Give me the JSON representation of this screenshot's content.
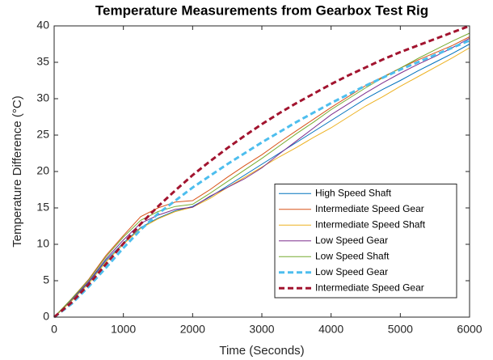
{
  "chart_data": {
    "type": "line",
    "title": "Temperature Measurements from Gearbox Test Rig",
    "x_label": "Time (Seconds)",
    "y_label": "Temperature Difference (°C)",
    "x": [
      0,
      250,
      500,
      750,
      1000,
      1250,
      1500,
      1750,
      2000,
      2250,
      2500,
      2750,
      3000,
      3250,
      3500,
      3750,
      4000,
      4250,
      4500,
      4750,
      5000,
      5250,
      5500,
      5750,
      6000
    ],
    "series": [
      {
        "name": "High Speed Shaft",
        "color": "#0072BD",
        "dashed": false,
        "values": [
          0,
          2.3,
          4.8,
          7.8,
          10.2,
          12.3,
          13.6,
          14.6,
          15.2,
          16.5,
          18,
          19.5,
          21,
          22.5,
          24,
          25.5,
          27,
          28.5,
          30,
          31.3,
          32.5,
          33.8,
          35,
          36.2,
          37.5
        ]
      },
      {
        "name": "Intermediate Speed Gear",
        "color": "#D95319",
        "dashed": false,
        "values": [
          0,
          2.5,
          5.2,
          8.5,
          11.2,
          13.8,
          15,
          15.8,
          16,
          17.5,
          19.2,
          20.8,
          22.3,
          24,
          25.6,
          27.2,
          28.8,
          30.3,
          31.8,
          33,
          34.2,
          35.3,
          36.3,
          37.3,
          38.5
        ]
      },
      {
        "name": "Intermediate Speed Shaft",
        "color": "#EDB120",
        "dashed": false,
        "values": [
          0,
          2.2,
          4.6,
          7.6,
          10,
          12.2,
          13.5,
          14.5,
          15.1,
          16.3,
          17.8,
          19.2,
          20.6,
          22,
          23.3,
          24.7,
          26,
          27.5,
          29,
          30.3,
          31.7,
          33,
          34.3,
          35.6,
          37
        ]
      },
      {
        "name": "Low Speed Gear",
        "color": "#7E2F8E",
        "dashed": false,
        "values": [
          0,
          2.4,
          4.9,
          8,
          10.6,
          12.9,
          14,
          14.8,
          15.1,
          16.6,
          17.8,
          19,
          20.5,
          22.4,
          24.2,
          26,
          27.8,
          29.3,
          30.8,
          32.2,
          33.5,
          34.7,
          35.8,
          37,
          38.3
        ]
      },
      {
        "name": "Low Speed Shaft",
        "color": "#77AC30",
        "dashed": false,
        "values": [
          0,
          2.5,
          5.1,
          8.3,
          11,
          13.3,
          14.5,
          15.2,
          15.5,
          17,
          18.6,
          20.2,
          21.8,
          23.5,
          25.2,
          26.8,
          28.5,
          30,
          31.5,
          32.9,
          34.2,
          35.5,
          36.7,
          37.9,
          39
        ]
      },
      {
        "name": "Low Speed Gear",
        "color": "#4DBEEE",
        "dashed": true,
        "values": [
          0,
          1.8,
          4.2,
          6.8,
          9.5,
          12,
          14.2,
          16,
          17.8,
          19.4,
          21,
          22.5,
          24,
          25.4,
          26.8,
          28.1,
          29.4,
          30.6,
          31.8,
          32.9,
          34,
          35,
          36,
          37,
          38
        ]
      },
      {
        "name": "Intermediate Speed Gear",
        "color": "#A2142F",
        "dashed": true,
        "values": [
          0,
          2,
          4.5,
          7.3,
          10.1,
          12.8,
          15.2,
          17.4,
          19.5,
          21.4,
          23.2,
          24.9,
          26.5,
          28,
          29.4,
          30.7,
          32,
          33.2,
          34.3,
          35.4,
          36.4,
          37.3,
          38.2,
          39.1,
          40
        ]
      }
    ],
    "xlim": [
      0,
      6000
    ],
    "xticks": [
      0,
      1000,
      2000,
      3000,
      4000,
      5000,
      6000
    ],
    "ylim": [
      0,
      40
    ],
    "yticks": [
      0,
      5,
      10,
      15,
      20,
      25,
      30,
      35,
      40
    ],
    "legend": "lower right"
  }
}
